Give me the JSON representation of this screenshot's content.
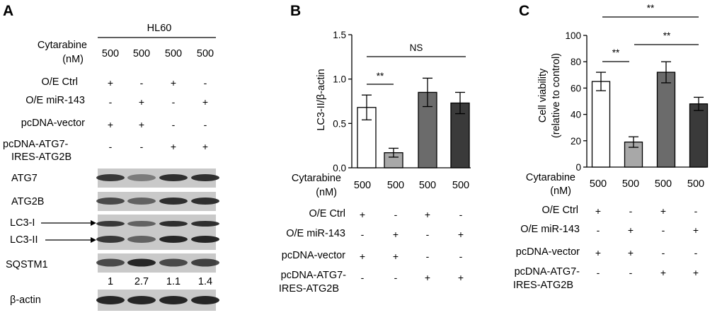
{
  "panel_a": {
    "letter": "A",
    "cell_line": "HL60",
    "cytarabine_label_1": "Cytarabine",
    "cytarabine_label_2": "(nM)",
    "doses": [
      "500",
      "500",
      "500",
      "500"
    ],
    "rows": [
      {
        "label": "O/E Ctrl",
        "signs": [
          "+",
          "-",
          "+",
          "-"
        ]
      },
      {
        "label": "O/E miR-143",
        "signs": [
          "-",
          "+",
          "-",
          "+"
        ]
      },
      {
        "label": "pcDNA-vector",
        "signs": [
          "+",
          "+",
          "-",
          "-"
        ]
      },
      {
        "label": "pcDNA-ATG7-",
        "label2": "IRES-ATG2B",
        "signs": [
          "-",
          "-",
          "+",
          "+"
        ]
      }
    ],
    "blots": [
      {
        "label": "ATG7"
      },
      {
        "label": "ATG2B"
      },
      {
        "label": "LC3-I",
        "label2": "LC3-II"
      },
      {
        "label": "SQSTM1"
      },
      {
        "label": "β-actin"
      }
    ],
    "band_intensity": {
      "ATG7": [
        0.85,
        0.45,
        0.9,
        0.9
      ],
      "ATG2B": [
        0.75,
        0.6,
        0.9,
        0.9
      ],
      "LC3-I": [
        0.85,
        0.6,
        0.9,
        0.9
      ],
      "LC3-II": [
        0.85,
        0.6,
        0.95,
        0.95
      ],
      "SQSTM1": [
        0.75,
        0.95,
        0.75,
        0.8
      ],
      "β-actin": [
        0.95,
        0.95,
        0.95,
        0.95
      ]
    },
    "quant": [
      "1",
      "2.7",
      "1.1",
      "1.4"
    ]
  },
  "panel_b": {
    "letter": "B",
    "ylabel": "LC3-II/β-actin",
    "significance": [
      {
        "text": "**",
        "between": [
          0,
          1
        ]
      },
      {
        "text": "NS",
        "between": [
          0,
          3
        ]
      }
    ]
  },
  "panel_c": {
    "letter": "C",
    "ylabel_1": "Cell viability",
    "ylabel_2": "(relative to control)",
    "significance": [
      {
        "text": "**",
        "between": [
          0,
          1
        ]
      },
      {
        "text": "**",
        "between": [
          1,
          3
        ]
      },
      {
        "text": "**",
        "between": [
          0,
          3
        ]
      }
    ]
  },
  "conditions": {
    "cytarabine_label_1": "Cytarabine",
    "cytarabine_label_2": "(nM)",
    "doses": [
      "500",
      "500",
      "500",
      "500"
    ],
    "rows": [
      {
        "label": "O/E Ctrl",
        "signs": [
          "+",
          "-",
          "+",
          "-"
        ]
      },
      {
        "label": "O/E miR-143",
        "signs": [
          "-",
          "+",
          "-",
          "+"
        ]
      },
      {
        "label": "pcDNA-vector",
        "signs": [
          "+",
          "+",
          "-",
          "-"
        ]
      },
      {
        "label": "pcDNA-ATG7-",
        "label2": "IRES-ATG2B",
        "signs": [
          "-",
          "-",
          "+",
          "+"
        ]
      }
    ]
  },
  "colors": {
    "bar_fills": [
      "#ffffff",
      "#a8a8a8",
      "#6b6b6b",
      "#3a3a3a"
    ],
    "band": "#1e1e1e",
    "blot_bg": "#c9c9c9"
  },
  "chart_data": [
    {
      "type": "bar",
      "panel": "B",
      "categories": [
        "500",
        "500",
        "500",
        "500"
      ],
      "values": [
        0.68,
        0.17,
        0.85,
        0.73
      ],
      "errors": [
        0.14,
        0.05,
        0.16,
        0.12
      ],
      "ylabel": "LC3-II/β-actin",
      "ylim": [
        0,
        1.5
      ],
      "yticks": [
        "0.0",
        "0.5",
        "1.0",
        "1.5"
      ]
    },
    {
      "type": "bar",
      "panel": "C",
      "categories": [
        "500",
        "500",
        "500",
        "500"
      ],
      "values": [
        65,
        19,
        72,
        48
      ],
      "errors": [
        7,
        4,
        8,
        5
      ],
      "ylabel": "Cell viability (relative to control)",
      "ylim": [
        0,
        100
      ],
      "yticks": [
        "0",
        "20",
        "40",
        "60",
        "80",
        "100"
      ]
    }
  ]
}
